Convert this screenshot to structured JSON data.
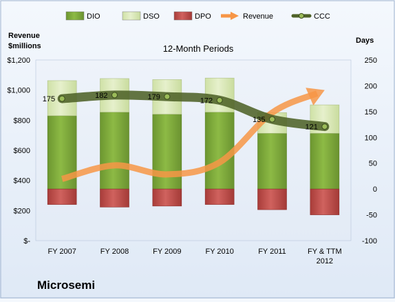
{
  "chart_data": {
    "type": "bar",
    "title": "12-Month Periods",
    "company": "Microsemi",
    "ylabel_left": [
      "Revenue",
      "$millions"
    ],
    "ylabel_right": "Days",
    "categories": [
      "FY 2007",
      "FY 2008",
      "FY 2009",
      "FY 2010",
      "FY 2011",
      "FY & TTM 2012"
    ],
    "left_axis": {
      "min": 0,
      "max": 1200,
      "step": 200,
      "ticks": [
        "$-",
        "$200",
        "$400",
        "$600",
        "$800",
        "$1,000",
        "$1,200"
      ]
    },
    "right_axis": {
      "min": -100,
      "max": 250,
      "step": 50,
      "ticks": [
        "-100",
        "-50",
        "0",
        "50",
        "100",
        "150",
        "200",
        "250"
      ]
    },
    "legend": {
      "position": "top",
      "items": [
        {
          "name": "DIO",
          "kind": "bar",
          "color": "#7ea836"
        },
        {
          "name": "DSO",
          "kind": "bar",
          "color": "#d8e8b4"
        },
        {
          "name": "DPO",
          "kind": "bar",
          "color": "#c0504d"
        },
        {
          "name": "Revenue",
          "kind": "arrow",
          "color": "#f79646"
        },
        {
          "name": "CCC",
          "kind": "line",
          "color": "#4f6228"
        }
      ]
    },
    "series": [
      {
        "name": "DIO",
        "axis": "right",
        "values": [
          142,
          149,
          145,
          149,
          108,
          108
        ]
      },
      {
        "name": "DSO",
        "axis": "right",
        "values": [
          68,
          65,
          67,
          66,
          40,
          55
        ]
      },
      {
        "name": "DPO",
        "axis": "right",
        "values": [
          -30,
          -35,
          -33,
          -30,
          -40,
          -50
        ]
      },
      {
        "name": "Revenue",
        "axis": "left",
        "values": [
          410,
          500,
          440,
          520,
          850,
          1000
        ]
      },
      {
        "name": "CCC",
        "axis": "right",
        "values": [
          175,
          182,
          179,
          172,
          135,
          121
        ],
        "labels": [
          "175",
          "182",
          "179",
          "172",
          "135",
          "121"
        ]
      }
    ],
    "grid": false
  }
}
